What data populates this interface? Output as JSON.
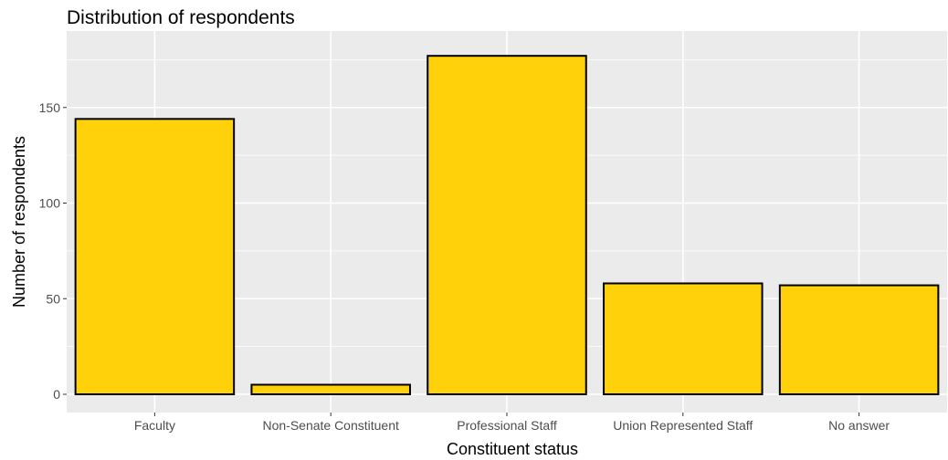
{
  "chart_data": {
    "type": "bar",
    "title": "Distribution of respondents",
    "xlabel": "Constituent status",
    "ylabel": "Number of respondents",
    "categories": [
      "Faculty",
      "Non-Senate Constituent",
      "Professional Staff",
      "Union Represented Staff",
      "No answer"
    ],
    "values": [
      144,
      5,
      177,
      58,
      57
    ],
    "ylim": [
      0,
      185
    ],
    "yticks": [
      0,
      50,
      100,
      150
    ],
    "ytick_labels": [
      "0",
      "50",
      "100",
      "150"
    ],
    "grid": true,
    "legend": "none",
    "colors": {
      "bar_fill": "#FFD10A",
      "bar_stroke": "#000000",
      "panel_background": "#EBEBEB",
      "grid_line": "#FFFFFF"
    }
  }
}
